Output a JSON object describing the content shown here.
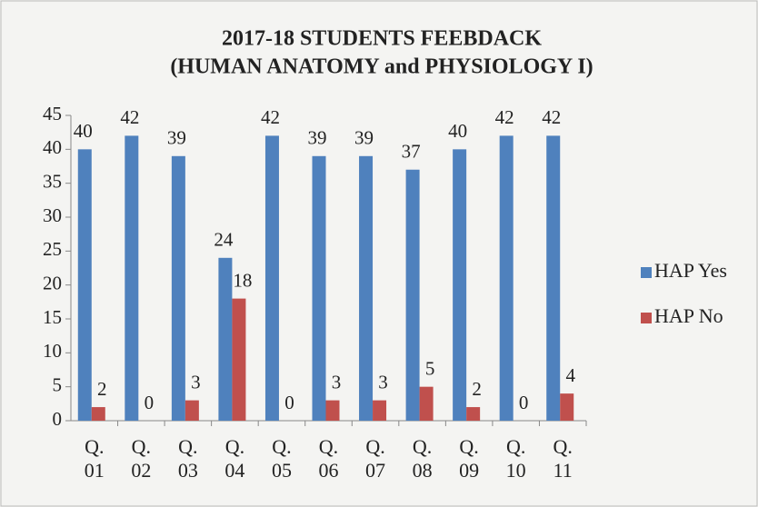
{
  "chart_data": {
    "type": "bar",
    "title": "2017-18 STUDENTS FEEBDACK",
    "subtitle": "(HUMAN ANATOMY and PHYSIOLOGY I)",
    "categories": [
      "Q. 01",
      "Q. 02",
      "Q. 03",
      "Q. 04",
      "Q. 05",
      "Q. 06",
      "Q. 07",
      "Q. 08",
      "Q. 09",
      "Q. 10",
      "Q. 11"
    ],
    "series": [
      {
        "name": "HAP Yes",
        "color": "#4f81bd",
        "values": [
          40,
          42,
          39,
          24,
          42,
          39,
          39,
          37,
          40,
          42,
          42
        ]
      },
      {
        "name": "HAP No",
        "color": "#c0504d",
        "values": [
          2,
          0,
          3,
          18,
          0,
          3,
          3,
          5,
          2,
          0,
          4
        ]
      }
    ],
    "ylim": [
      0,
      45
    ],
    "yticks": [
      0,
      5,
      10,
      15,
      20,
      25,
      30,
      35,
      40,
      45
    ],
    "legend": "right"
  }
}
